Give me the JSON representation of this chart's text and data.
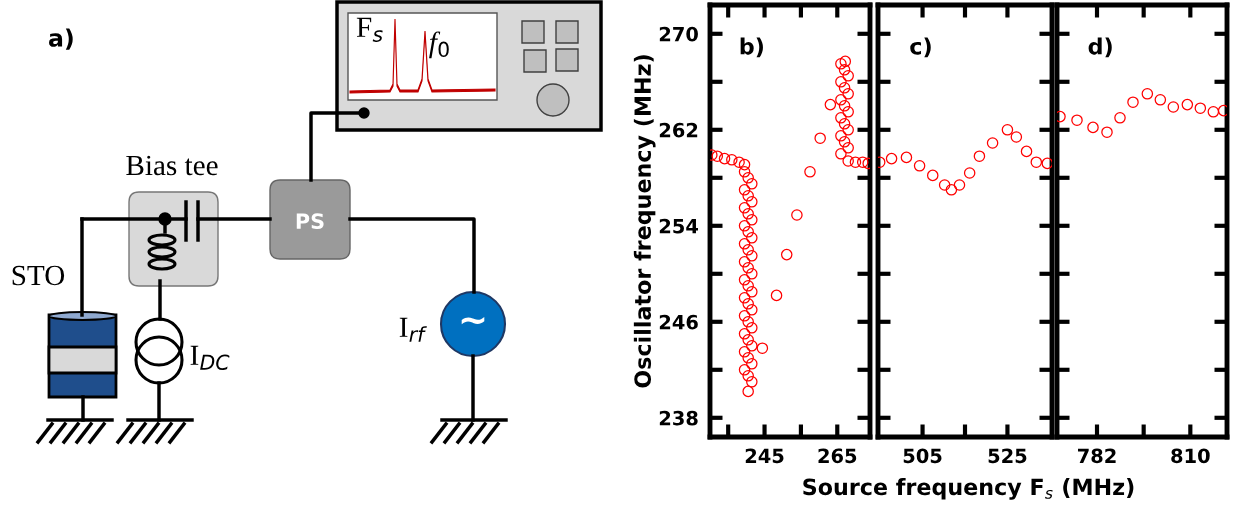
{
  "chart_data": [
    {
      "type": "other",
      "title": "a)",
      "annotations": [
        "STO",
        "Bias tee",
        "I$_{DC}$",
        "I$_{rf}$",
        "PS",
        "F$_{s}$",
        "f$_{0}$",
        "~"
      ]
    },
    {
      "type": "scatter",
      "title": "b)",
      "ylabel": "Oscillator frequency (MHz)",
      "marker": "circle",
      "xlim": [
        230,
        274
      ],
      "xticks": [
        {
          "value": 235,
          "label": null
        },
        245,
        {
          "value": 255,
          "label": null
        },
        265
      ],
      "ylim": [
        236.4,
        272.4
      ],
      "yticks": [
        238,
        {
          "value": 242,
          "label": null
        },
        246,
        {
          "value": 250,
          "label": null
        },
        254,
        {
          "value": 258,
          "label": null
        },
        262,
        {
          "value": 266,
          "label": null
        },
        270
      ],
      "series": [
        {
          "color": "#ff0000",
          "x": [
            230.5,
            232,
            234,
            236,
            238,
            239.5,
            239.5,
            240.5,
            241.5,
            239.5,
            240.5,
            241.5,
            239.5,
            240.5,
            241.5,
            239.5,
            240.5,
            241.5,
            239.5,
            240.5,
            241.5,
            239.5,
            240.5,
            241.5,
            239.5,
            240.5,
            241.5,
            239.5,
            240.5,
            241.5,
            239.5,
            240.5,
            241.5,
            239.5,
            240.5,
            241.5,
            239.5,
            240.5,
            241.5,
            239.5,
            240.5,
            241.5,
            240.5,
            244.4,
            248.3,
            251.1,
            253.9,
            257.5,
            260.3,
            263.1,
            267.2,
            266,
            267,
            268,
            266,
            267,
            268,
            266,
            267,
            268,
            266,
            267,
            268,
            266,
            267,
            268,
            266,
            268,
            270,
            272,
            273.5
          ],
          "values": [
            259.9,
            259.8,
            259.6,
            259.5,
            259.3,
            259.1,
            258.5,
            258,
            257.5,
            257,
            256.5,
            256,
            255.5,
            255,
            254.5,
            254,
            253.5,
            253,
            252.5,
            252,
            251.5,
            251,
            250.5,
            250,
            249.5,
            249,
            248.5,
            248,
            247.5,
            247,
            246.5,
            246,
            245.5,
            245,
            244.5,
            244,
            243.5,
            243,
            242.5,
            242,
            241.5,
            241,
            240.2,
            243.8,
            248.2,
            251.6,
            254.9,
            258.5,
            261.3,
            264.1,
            267.7,
            267.5,
            267,
            266.5,
            266,
            265.5,
            265,
            264.5,
            264,
            263.5,
            263,
            262.5,
            262,
            261.5,
            261,
            260.5,
            260,
            259.4,
            259.3,
            259.3,
            259.2
          ]
        }
      ]
    },
    {
      "type": "scatter",
      "title": "c)",
      "xlabel": "Source frequency F$_{s}$ (MHz)",
      "marker": "circle",
      "tick_labels": "x",
      "xlim": [
        494.5,
        535.5
      ],
      "xticks": [
        505,
        {
          "value": 515,
          "label": null
        },
        525
      ],
      "ylim": [
        236.4,
        272.4
      ],
      "yticks": [
        238,
        242,
        246,
        250,
        254,
        258,
        262,
        266,
        270
      ],
      "series": [
        {
          "color": "#ff0000",
          "x": [
            494.9,
            497.7,
            501.2,
            504.3,
            507.4,
            510.2,
            511.8,
            513.7,
            516.1,
            518.4,
            521.5,
            525,
            527.1,
            529.5,
            531.8,
            534.4
          ],
          "values": [
            259.3,
            259.6,
            259.7,
            259.0,
            258.2,
            257.4,
            257.0,
            257.4,
            258.4,
            259.8,
            260.9,
            262.0,
            261.4,
            260.2,
            259.3,
            259.2
          ]
        }
      ]
    },
    {
      "type": "scatter",
      "title": "d)",
      "marker": "circle",
      "tick_labels": "x",
      "xlim": [
        770,
        821
      ],
      "xticks": [
        782,
        {
          "value": 796,
          "label": null
        },
        810
      ],
      "ylim": [
        236.4,
        272.4
      ],
      "yticks": [
        238,
        242,
        246,
        250,
        254,
        258,
        262,
        266,
        270
      ],
      "series": [
        {
          "color": "#ff0000",
          "x": [
            770.9,
            776.0,
            780.8,
            785.0,
            788.9,
            792.8,
            797.1,
            801.0,
            804.9,
            809.1,
            813.0,
            816.9,
            820.0
          ],
          "values": [
            263.1,
            262.8,
            262.2,
            261.8,
            263.0,
            264.3,
            265.0,
            264.5,
            263.9,
            264.1,
            263.8,
            263.5,
            263.6
          ]
        }
      ]
    }
  ]
}
